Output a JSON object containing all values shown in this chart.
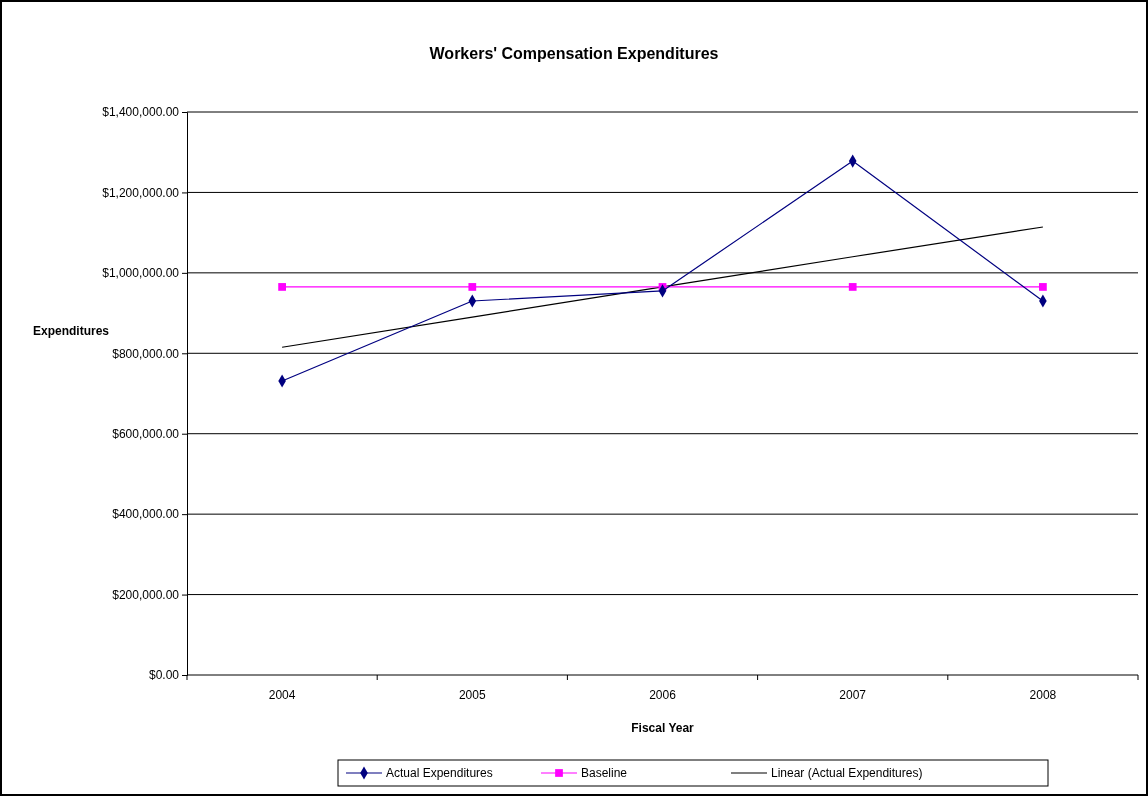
{
  "chart_data": {
    "type": "line",
    "title": "Workers' Compensation Expenditures",
    "xlabel": "Fiscal Year",
    "ylabel": "Expenditures",
    "categories": [
      "2004",
      "2005",
      "2006",
      "2007",
      "2008"
    ],
    "series": [
      {
        "name": "Actual Expenditures",
        "color": "#000080",
        "marker": "diamond",
        "values": [
          731000,
          930000,
          955000,
          1278000,
          930000
        ]
      },
      {
        "name": "Baseline",
        "color": "#ff00ff",
        "marker": "square",
        "values": [
          965000,
          965000,
          965000,
          965000,
          965000
        ]
      },
      {
        "name": "Linear (Actual Expenditures)",
        "color": "#000000",
        "marker": "none",
        "values": [
          815000,
          890000,
          965000,
          1040000,
          1114000
        ]
      }
    ],
    "ylim": [
      0,
      1400000
    ],
    "yticks": [
      {
        "value": 0,
        "label": "$0.00"
      },
      {
        "value": 200000,
        "label": "$200,000.00"
      },
      {
        "value": 400000,
        "label": "$400,000.00"
      },
      {
        "value": 600000,
        "label": "$600,000.00"
      },
      {
        "value": 800000,
        "label": "$800,000.00"
      },
      {
        "value": 1000000,
        "label": "$1,000,000.00"
      },
      {
        "value": 1200000,
        "label": "$1,200,000.00"
      },
      {
        "value": 1400000,
        "label": "$1,400,000.00"
      }
    ],
    "grid": "y",
    "legend": "bottom",
    "line_style": "solid"
  }
}
